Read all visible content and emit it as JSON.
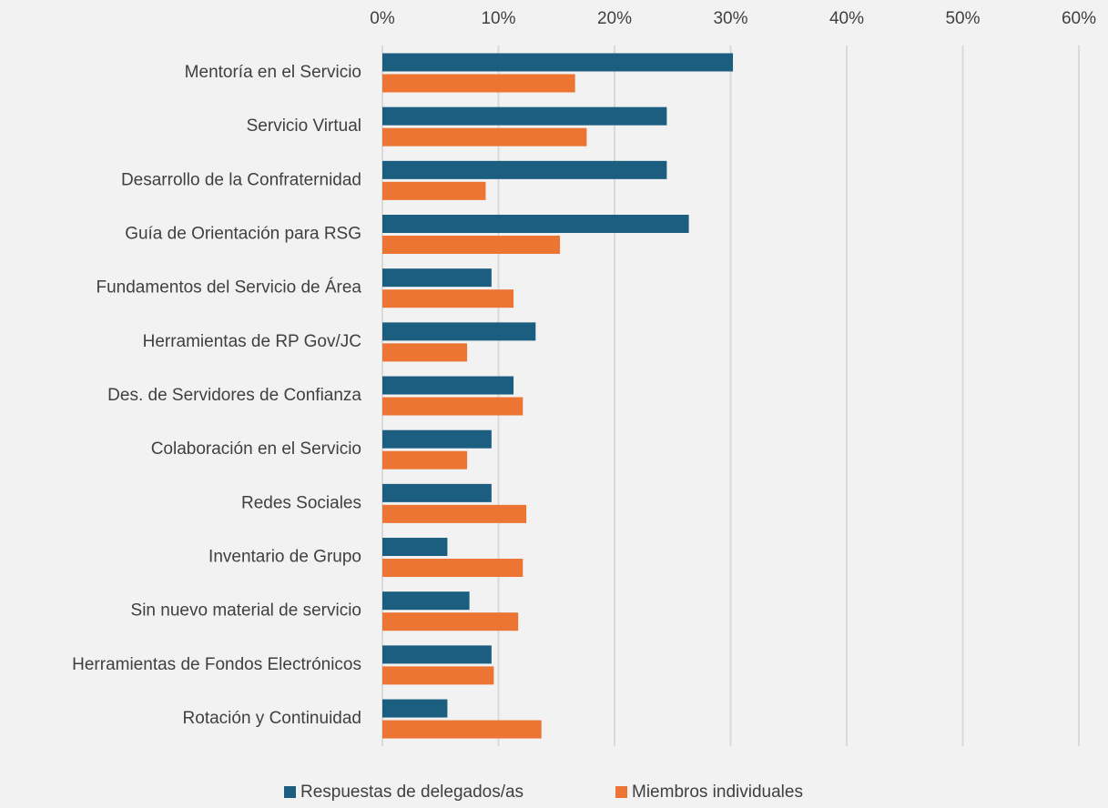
{
  "chart_data": {
    "type": "hbar",
    "categories": [
      "Mentoría en el Servicio",
      "Servicio Virtual",
      "Desarrollo de la Confraternidad",
      "Guía de Orientación para RSG",
      "Fundamentos del Servicio de Área",
      "Herramientas de RP Gov/JC",
      "Des. de Servidores de Confianza",
      "Colaboración en el Servicio",
      "Redes Sociales",
      "Inventario de Grupo",
      "Sin nuevo material de servicio",
      "Herramientas de Fondos Electrónicos",
      "Rotación y Continuidad"
    ],
    "series": [
      {
        "name": "Respuestas de delegados/as",
        "color": "#1b5e80",
        "values": [
          30.2,
          24.5,
          24.5,
          26.4,
          9.4,
          13.2,
          11.3,
          9.4,
          9.4,
          5.6,
          7.5,
          9.4,
          5.6
        ]
      },
      {
        "name": "Miembros individuales",
        "color": "#ed7534",
        "values": [
          16.6,
          17.6,
          8.9,
          15.3,
          11.3,
          7.3,
          12.1,
          7.3,
          12.4,
          12.1,
          11.7,
          9.6,
          13.7
        ]
      }
    ],
    "xlim": [
      0,
      60
    ],
    "xticks": [
      {
        "value": 0,
        "label": "0%"
      },
      {
        "value": 10,
        "label": "10%"
      },
      {
        "value": 20,
        "label": "20%"
      },
      {
        "value": 30,
        "label": "30%"
      },
      {
        "value": 40,
        "label": "40%"
      },
      {
        "value": 50,
        "label": "50%"
      },
      {
        "value": 60,
        "label": "60%"
      }
    ],
    "grid": true,
    "legend": "bottom"
  }
}
